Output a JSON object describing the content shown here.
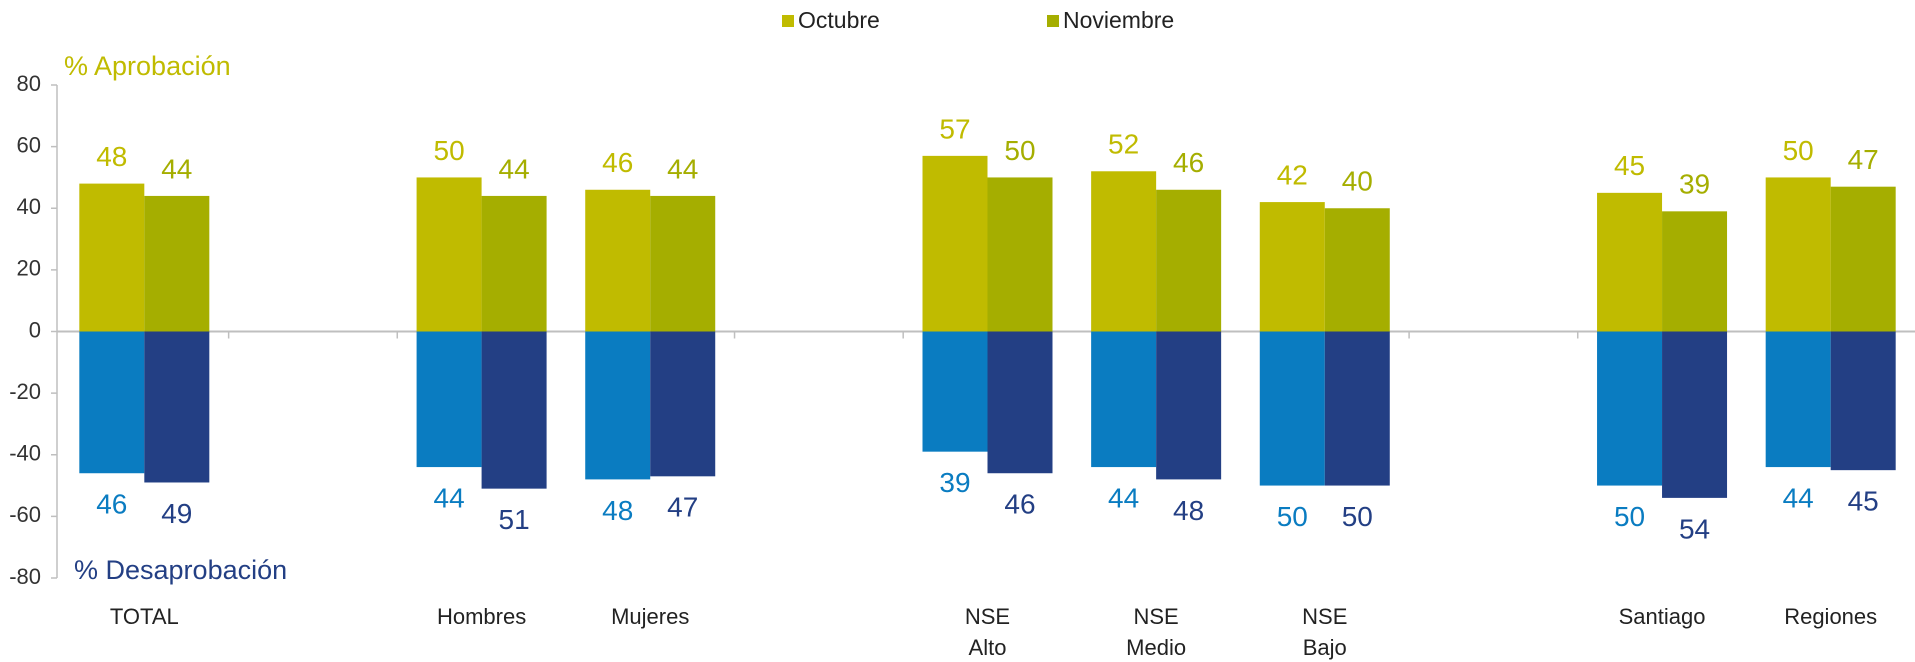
{
  "chart_data": {
    "type": "bar",
    "categories": [
      "TOTAL",
      null,
      "Hombres",
      "Mujeres",
      null,
      "NSE Alto",
      "NSE Medio",
      "NSE Bajo",
      null,
      "Santiago",
      "Regiones"
    ],
    "annotations": [
      "% Aprobación",
      "% Desaprobación"
    ],
    "series": [
      {
        "name": "Octubre",
        "color": "#c0bb00",
        "values": [
          48,
          null,
          50,
          46,
          null,
          57,
          52,
          42,
          null,
          45,
          50
        ]
      },
      {
        "name": "Noviembre",
        "color": "#a5ae00",
        "values": [
          44,
          null,
          44,
          44,
          null,
          50,
          46,
          40,
          null,
          39,
          47
        ]
      },
      {
        "color": "#0a7cc1",
        "values": [
          -46,
          null,
          -44,
          -48,
          null,
          -39,
          -44,
          -50,
          null,
          -50,
          -44
        ],
        "value_labels": [
          "46",
          null,
          "44",
          "48",
          null,
          "39",
          "44",
          "50",
          null,
          "50",
          "44"
        ]
      },
      {
        "color": "#233f84",
        "values": [
          -49,
          null,
          -51,
          -47,
          null,
          -46,
          -48,
          -50,
          null,
          -54,
          -45
        ],
        "value_labels": [
          "49",
          null,
          "51",
          "47",
          null,
          "46",
          "48",
          "50",
          null,
          "54",
          "45"
        ]
      }
    ],
    "ylim": [
      -80,
      80
    ],
    "yticks": [
      -80,
      -60,
      -40,
      -20,
      0,
      20,
      40,
      60,
      80
    ]
  }
}
